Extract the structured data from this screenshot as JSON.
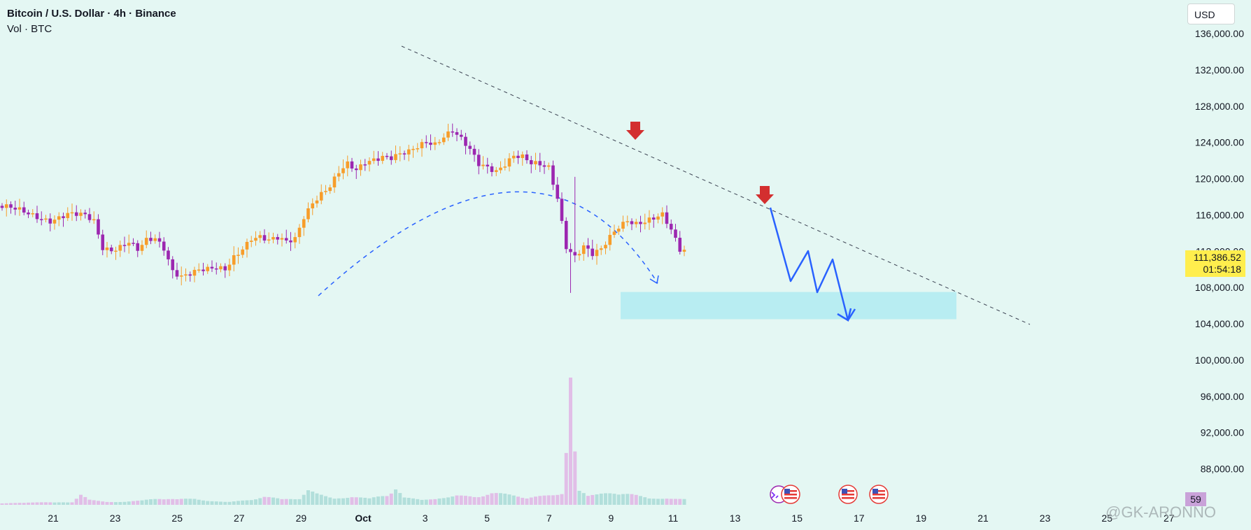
{
  "legend": {
    "symbol": "Bitcoin / U.S. Dollar · 4h · Binance",
    "volume": "Vol · BTC"
  },
  "currency": "USD",
  "price_tag": {
    "price": "111,386.52",
    "countdown": "01:54:18"
  },
  "volume_tag": "59",
  "watermark": "@GK-ARONNO",
  "colors": {
    "background": "#e4f7f3",
    "bull": "#f79d2a",
    "bear": "#9c27b0",
    "arrow": "#d32f2f",
    "projection": "#2962ff",
    "zone": "#b2ebf2",
    "volume_bull": "#b2dfdb",
    "volume_bear": "#e1bee7"
  },
  "chart_data": {
    "type": "candlestick",
    "title": "Bitcoin / U.S. Dollar · 4h · Binance",
    "y_ticks": [
      "136,000.00",
      "132,000.00",
      "128,000.00",
      "124,000.00",
      "120,000.00",
      "116,000.00",
      "112,000.00",
      "108,000.00",
      "104,000.00",
      "100,000.00",
      "96,000.00",
      "92,000.00",
      "88,000.00"
    ],
    "x_ticks": [
      "21",
      "23",
      "25",
      "27",
      "29",
      "Oct",
      "3",
      "5",
      "7",
      "9",
      "11",
      "13",
      "15",
      "17",
      "19",
      "21",
      "23",
      "25",
      "27"
    ],
    "ylim": [
      85000,
      139000
    ],
    "last_price": 111386.52,
    "support_zone": [
      104500,
      107500
    ],
    "price_path": [
      [
        0,
        117000
      ],
      [
        4,
        116000
      ],
      [
        6,
        115500
      ],
      [
        8,
        116000
      ],
      [
        10,
        115800
      ],
      [
        11,
        115300
      ],
      [
        12,
        112500
      ],
      [
        13,
        112300
      ],
      [
        14,
        112600
      ],
      [
        15,
        113000
      ],
      [
        16,
        112000
      ],
      [
        17,
        113000
      ],
      [
        18,
        113300
      ],
      [
        19,
        112400
      ],
      [
        20,
        110000
      ],
      [
        21,
        109400
      ],
      [
        22,
        109600
      ],
      [
        23,
        109800
      ],
      [
        24,
        109800
      ],
      [
        25,
        110000
      ],
      [
        26,
        110000
      ],
      [
        27,
        111500
      ],
      [
        28,
        112500
      ],
      [
        29,
        113500
      ],
      [
        30,
        113500
      ],
      [
        31,
        113000
      ],
      [
        32,
        113300
      ],
      [
        33,
        113000
      ],
      [
        34,
        113500
      ],
      [
        35,
        116000
      ],
      [
        36,
        117500
      ],
      [
        37,
        118300
      ],
      [
        38,
        119000
      ],
      [
        39,
        120500
      ],
      [
        40,
        121500
      ],
      [
        41,
        121000
      ],
      [
        42,
        122000
      ],
      [
        43,
        122300
      ],
      [
        44,
        122500
      ],
      [
        45,
        122200
      ],
      [
        46,
        122500
      ],
      [
        47,
        122800
      ],
      [
        48,
        123500
      ],
      [
        49,
        124200
      ],
      [
        50,
        124000
      ],
      [
        51,
        124800
      ],
      [
        52,
        125300
      ],
      [
        53,
        124200
      ],
      [
        54,
        123000
      ],
      [
        55,
        121500
      ],
      [
        56,
        121300
      ],
      [
        57,
        121000
      ],
      [
        58,
        121800
      ],
      [
        59,
        122600
      ],
      [
        60,
        122300
      ],
      [
        61,
        121500
      ],
      [
        62,
        121400
      ],
      [
        63,
        121200
      ],
      [
        64,
        118000
      ],
      [
        65,
        112700
      ],
      [
        66,
        111500
      ],
      [
        67,
        112500
      ],
      [
        68,
        111500
      ],
      [
        69,
        112000
      ],
      [
        70,
        113500
      ],
      [
        71,
        114800
      ],
      [
        72,
        115600
      ],
      [
        73,
        115200
      ],
      [
        74,
        115300
      ],
      [
        75,
        115500
      ],
      [
        76,
        115800
      ],
      [
        77,
        114200
      ],
      [
        78,
        112200
      ]
    ],
    "volume": [
      [
        0,
        0.2
      ],
      [
        3,
        0.3
      ],
      [
        6,
        0.25
      ],
      [
        8,
        0.35
      ],
      [
        9,
        1.2
      ],
      [
        10,
        0.6
      ],
      [
        12,
        0.4
      ],
      [
        14,
        0.4
      ],
      [
        16,
        0.5
      ],
      [
        18,
        0.8
      ],
      [
        20,
        0.6
      ],
      [
        22,
        0.7
      ],
      [
        24,
        0.5
      ],
      [
        26,
        0.4
      ],
      [
        28,
        0.6
      ],
      [
        30,
        0.9
      ],
      [
        32,
        0.6
      ],
      [
        34,
        0.8
      ],
      [
        35,
        1.8
      ],
      [
        36,
        1.4
      ],
      [
        38,
        0.9
      ],
      [
        40,
        1.0
      ],
      [
        42,
        0.7
      ],
      [
        44,
        1.2
      ],
      [
        45,
        1.9
      ],
      [
        46,
        0.8
      ],
      [
        48,
        0.6
      ],
      [
        50,
        0.9
      ],
      [
        52,
        1.2
      ],
      [
        54,
        1.0
      ],
      [
        56,
        1.3
      ],
      [
        58,
        1.1
      ],
      [
        60,
        0.9
      ],
      [
        62,
        1.2
      ],
      [
        64,
        1.5
      ],
      [
        65,
        13.0
      ],
      [
        66,
        1.8
      ],
      [
        67,
        1.0
      ],
      [
        68,
        1.1
      ],
      [
        70,
        1.5
      ],
      [
        72,
        1.2
      ],
      [
        74,
        0.8
      ],
      [
        76,
        0.9
      ],
      [
        78,
        0.7
      ]
    ]
  }
}
